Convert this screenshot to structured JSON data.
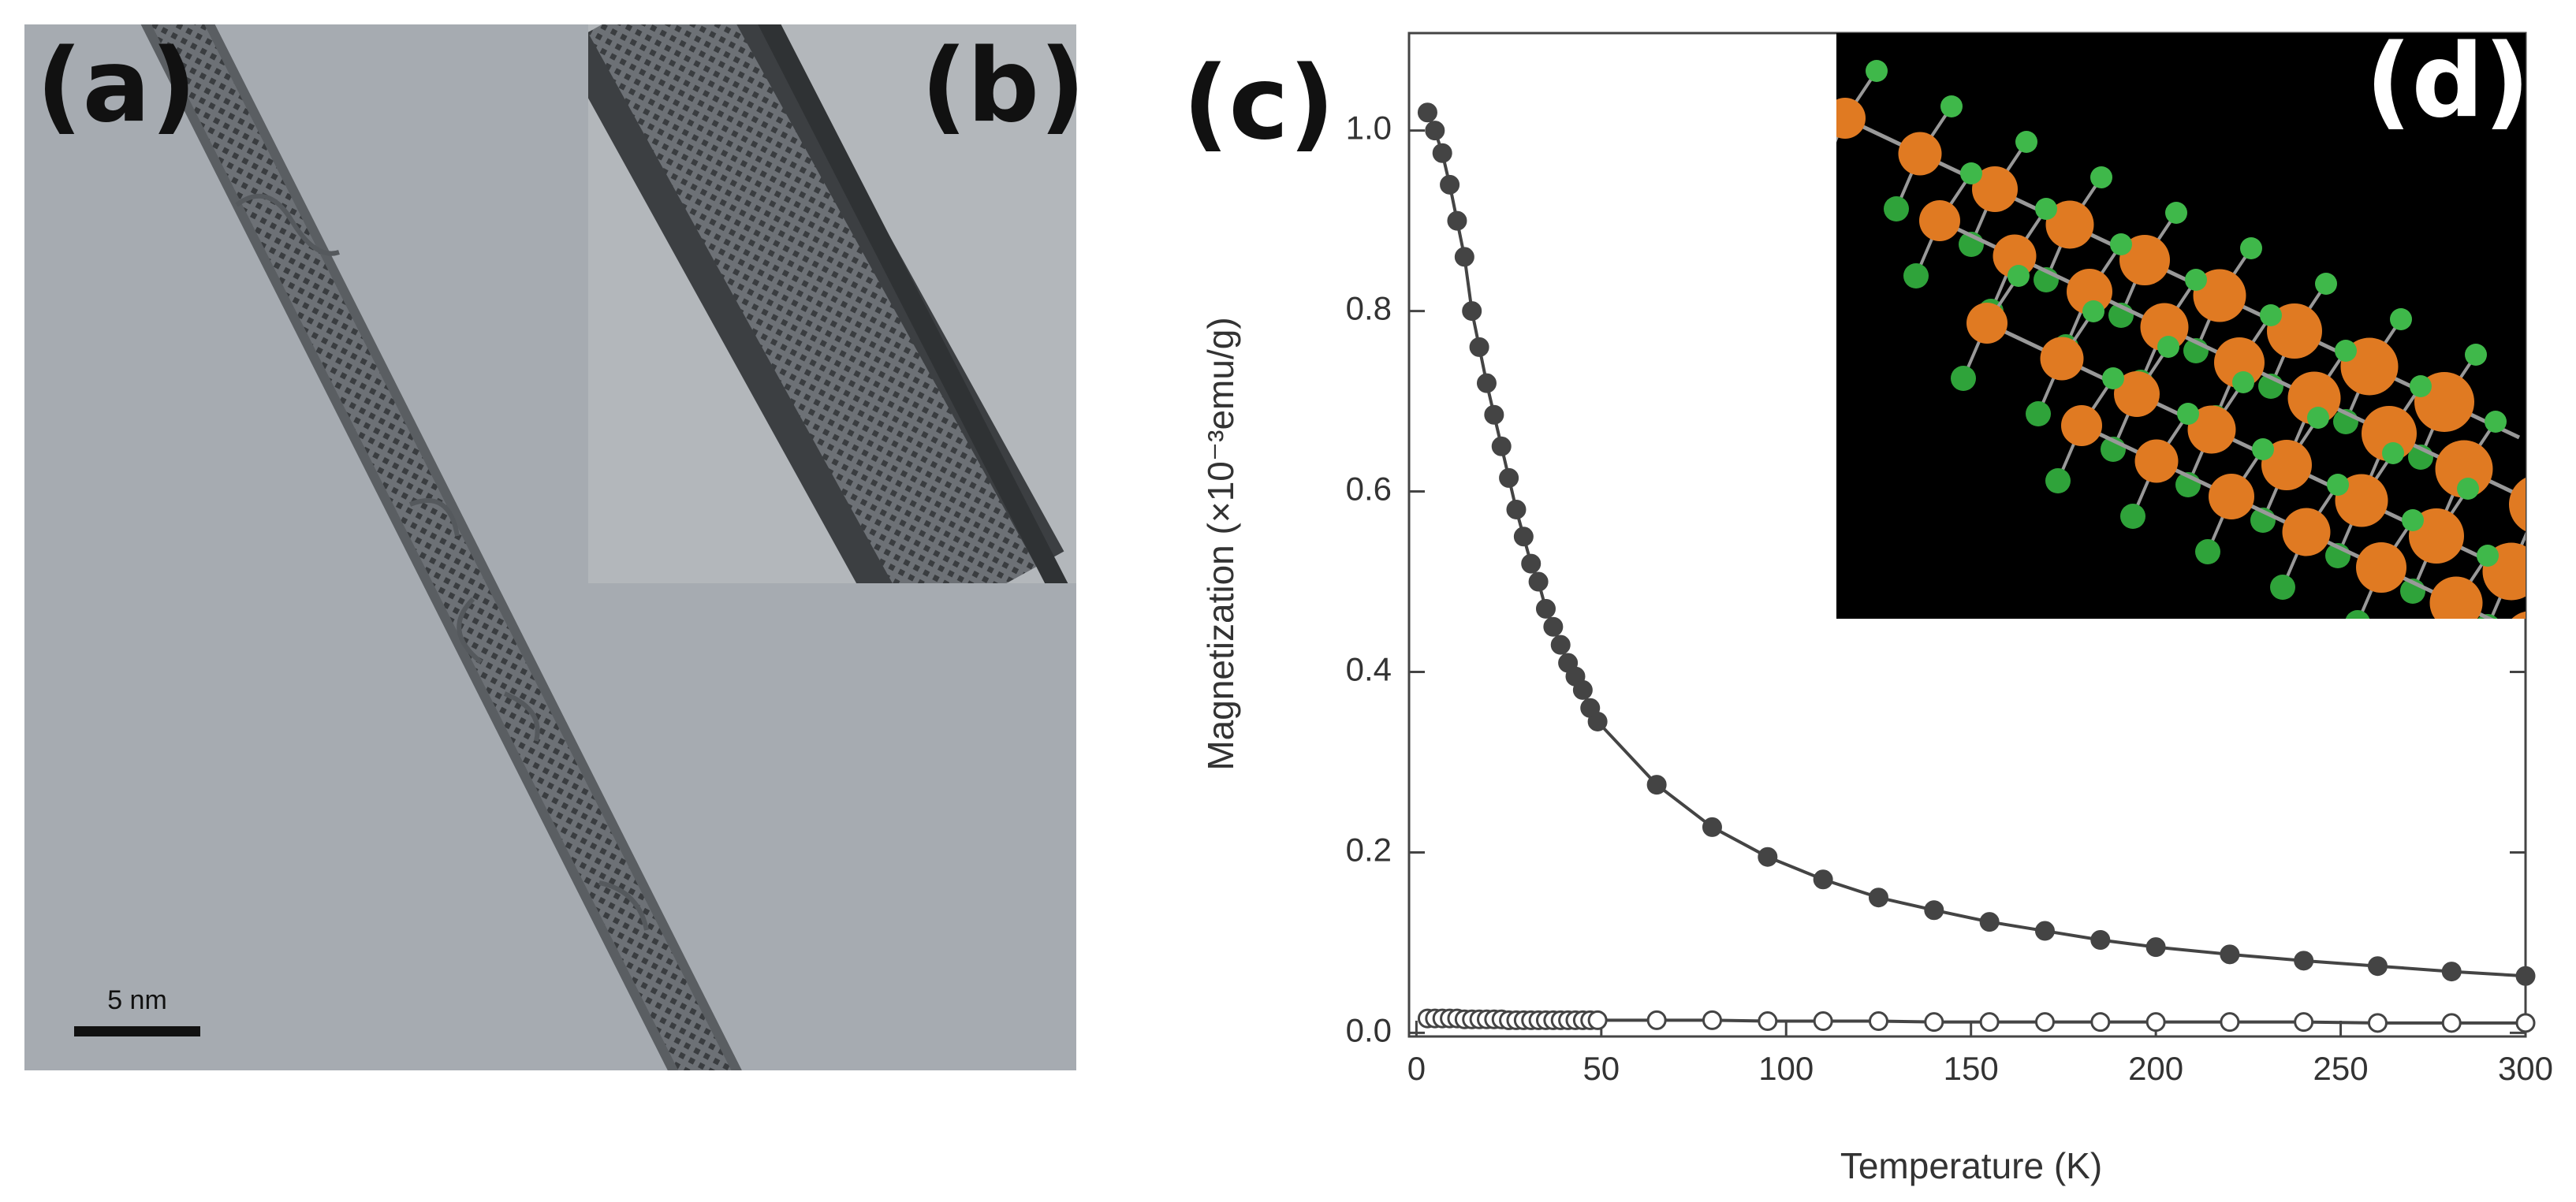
{
  "panel_labels": [
    "(a)",
    "(b)",
    "(c)",
    "(d)"
  ],
  "scale_bar": "5 nm",
  "chart_data": {
    "type": "line",
    "x_label": "Temperature (K)",
    "y_label": "Magnetization (×10⁻³emu/g)",
    "x": [
      3,
      5,
      7,
      9,
      11,
      13,
      15,
      17,
      19,
      21,
      23,
      25,
      27,
      29,
      31,
      33,
      35,
      37,
      39,
      41,
      43,
      45,
      47,
      49,
      65,
      80,
      95,
      110,
      125,
      140,
      155,
      170,
      185,
      200,
      220,
      240,
      260,
      280,
      300
    ],
    "series": [
      {
        "color": "#444444",
        "marker": "filled",
        "values": [
          1.02,
          1.0,
          0.975,
          0.94,
          0.9,
          0.86,
          0.8,
          0.76,
          0.72,
          0.685,
          0.65,
          0.615,
          0.58,
          0.55,
          0.52,
          0.5,
          0.47,
          0.45,
          0.43,
          0.41,
          0.395,
          0.38,
          0.36,
          0.345,
          0.275,
          0.228,
          0.195,
          0.17,
          0.15,
          0.136,
          0.123,
          0.113,
          0.103,
          0.095,
          0.087,
          0.08,
          0.074,
          0.068,
          0.063
        ]
      },
      {
        "color": "#444444",
        "marker": "open",
        "values": [
          0.016,
          0.016,
          0.016,
          0.016,
          0.016,
          0.015,
          0.015,
          0.015,
          0.015,
          0.015,
          0.015,
          0.014,
          0.014,
          0.014,
          0.014,
          0.014,
          0.014,
          0.014,
          0.014,
          0.014,
          0.014,
          0.014,
          0.014,
          0.014,
          0.014,
          0.014,
          0.013,
          0.013,
          0.013,
          0.012,
          0.012,
          0.012,
          0.012,
          0.012,
          0.012,
          0.012,
          0.011,
          0.011,
          0.011
        ]
      }
    ],
    "xlim": [
      -2,
      300
    ],
    "ylim": [
      -0.004,
      1.108
    ],
    "xticks": [
      0,
      50,
      100,
      150,
      200,
      250,
      300
    ],
    "yticks": [
      {
        "value": 0,
        "label": "0.0"
      },
      0.2,
      0.4,
      0.6,
      0.8,
      {
        "value": 1,
        "label": "1.0"
      }
    ]
  }
}
